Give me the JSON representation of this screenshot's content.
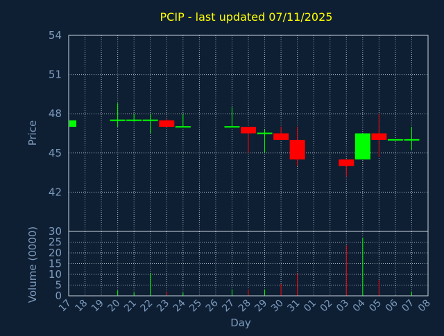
{
  "chart_data": {
    "type": "candlestick",
    "title": "PCIP - last updated 07/11/2025",
    "xlabel": "Day",
    "price_panel": {
      "ylabel": "Price",
      "ylim": [
        39,
        54
      ],
      "yticks": [
        42,
        45,
        48,
        51,
        54
      ]
    },
    "volume_panel": {
      "ylabel": "Volume (0000)",
      "ylim": [
        0,
        30
      ],
      "yticks": [
        0,
        5,
        10,
        15,
        20,
        25,
        30
      ]
    },
    "x_tick_labels": [
      "17",
      "18",
      "19",
      "20",
      "21",
      "22",
      "23",
      "24",
      "25",
      "26",
      "27",
      "28",
      "29",
      "30",
      "31",
      "01",
      "02",
      "03",
      "04",
      "05",
      "06",
      "07",
      "08"
    ],
    "grid": true,
    "colors": {
      "up": "#00ff00",
      "down": "#ff0000",
      "background": "#0f1f33",
      "title": "#ffff00",
      "axis_text": "#7d9cbf"
    },
    "candles": [
      {
        "x": "17",
        "open": 47.0,
        "high": 47.6,
        "low": 47.0,
        "close": 47.5,
        "volume": 0.3
      },
      {
        "x": "20",
        "open": 47.5,
        "high": 48.8,
        "low": 47.0,
        "close": 47.5,
        "volume": 2.5
      },
      {
        "x": "21",
        "open": 47.5,
        "high": 48.0,
        "low": 47.4,
        "close": 47.5,
        "volume": 1.5
      },
      {
        "x": "22",
        "open": 47.5,
        "high": 48.0,
        "low": 46.5,
        "close": 47.5,
        "volume": 10.5
      },
      {
        "x": "23",
        "open": 47.5,
        "high": 47.6,
        "low": 47.0,
        "close": 47.0,
        "volume": 2.0
      },
      {
        "x": "24",
        "open": 47.0,
        "high": 48.0,
        "low": 47.0,
        "close": 47.0,
        "volume": 1.5
      },
      {
        "x": "27",
        "open": 47.0,
        "high": 48.5,
        "low": 47.0,
        "close": 47.0,
        "volume": 3.0
      },
      {
        "x": "28",
        "open": 47.0,
        "high": 47.0,
        "low": 45.0,
        "close": 46.5,
        "volume": 3.0
      },
      {
        "x": "29",
        "open": 46.5,
        "high": 46.8,
        "low": 45.0,
        "close": 46.5,
        "volume": 3.0
      },
      {
        "x": "30",
        "open": 46.5,
        "high": 47.0,
        "low": 46.0,
        "close": 46.0,
        "volume": 5.5
      },
      {
        "x": "31",
        "open": 46.0,
        "high": 47.0,
        "low": 44.0,
        "close": 44.5,
        "volume": 10.5
      },
      {
        "x": "03",
        "open": 44.5,
        "high": 44.5,
        "low": 43.2,
        "close": 44.0,
        "volume": 23.5
      },
      {
        "x": "04",
        "open": 44.5,
        "high": 46.5,
        "low": 44.5,
        "close": 46.5,
        "volume": 27.0
      },
      {
        "x": "05",
        "open": 46.5,
        "high": 48.0,
        "low": 44.7,
        "close": 46.0,
        "volume": 7.5
      },
      {
        "x": "06",
        "open": 46.0,
        "high": 46.0,
        "low": 46.0,
        "close": 46.0,
        "volume": 0.3
      },
      {
        "x": "07",
        "open": 46.0,
        "high": 47.0,
        "low": 45.2,
        "close": 46.0,
        "volume": 2.0
      }
    ]
  }
}
